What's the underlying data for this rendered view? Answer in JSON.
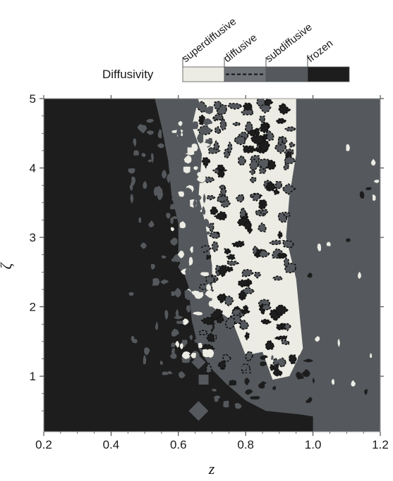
{
  "chart_data": {
    "type": "heatmap",
    "title": "",
    "xlabel": "z",
    "ylabel": "ζ",
    "xlim": [
      0.2,
      1.2
    ],
    "ylim": [
      0.2,
      5.0
    ],
    "x_ticks": [
      "0.2",
      "0.4",
      "0.6",
      "0.8",
      "1.0",
      "1.2"
    ],
    "x_tick_values": [
      0.2,
      0.4,
      0.6,
      0.8,
      1.0,
      1.2
    ],
    "y_ticks": [
      "1",
      "2",
      "3",
      "4",
      "5"
    ],
    "y_tick_values": [
      1,
      2,
      3,
      4,
      5
    ],
    "legend": {
      "title": "Diffusivity",
      "position": "top",
      "entries": [
        {
          "label": "superdiffusive",
          "color": "#ecece4",
          "style": "solid"
        },
        {
          "label": "diffusive",
          "color": "#6e7276",
          "style": "dashed"
        },
        {
          "label": "subdiffusive",
          "color": "#55595d",
          "style": "solid"
        },
        {
          "label": "frozen",
          "color": "#1d1d1d",
          "style": "solid"
        }
      ]
    },
    "regions": [
      {
        "label": "frozen",
        "description": "z below ~0.5-0.7 and strip for zeta below ~0.45 up to z~1.0"
      },
      {
        "label": "subdiffusive",
        "description": "z above ~1.0 (all zeta) and interleaved patches 0.6-0.9"
      },
      {
        "label": "superdiffusive",
        "description": "central region z ~0.65-0.95, zeta ~1.2-5"
      },
      {
        "label": "diffusive",
        "description": "dashed boundary between superdiffusive and subdiffusive"
      }
    ]
  }
}
